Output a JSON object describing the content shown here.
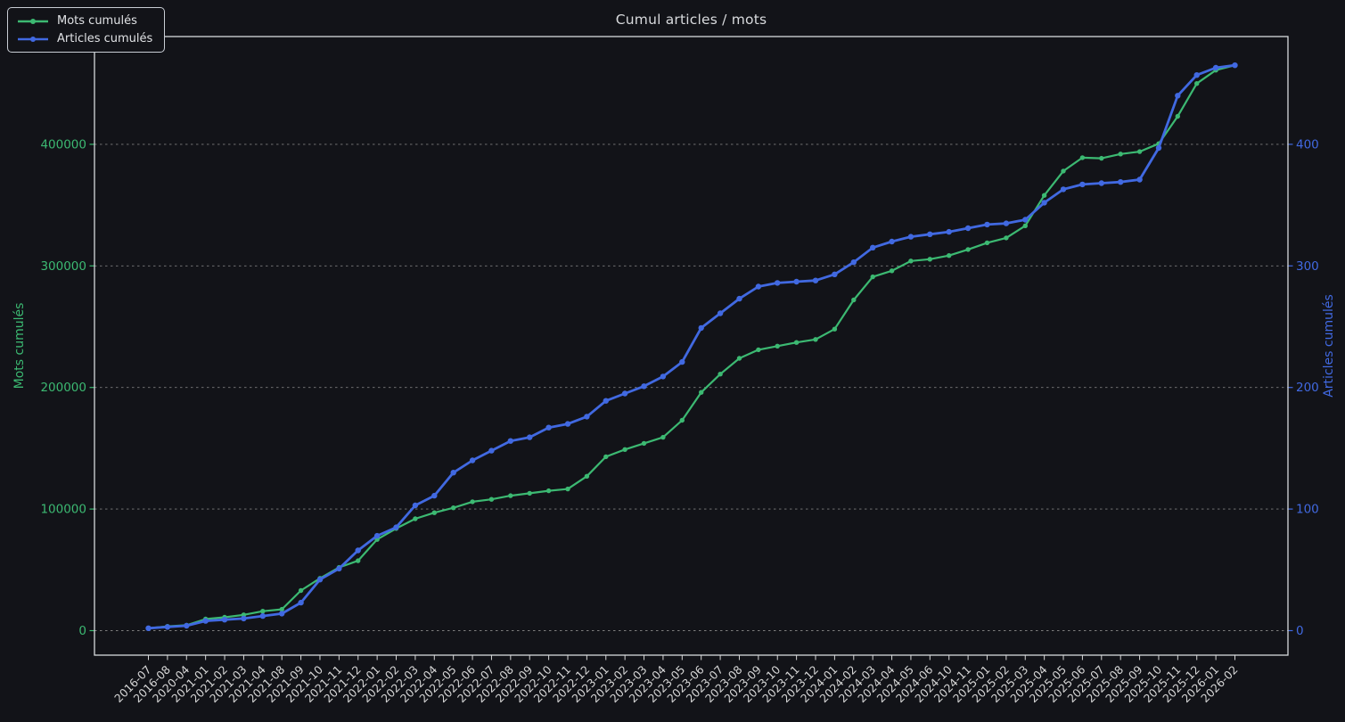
{
  "title": "Cumul articles / mots",
  "legend": {
    "items": [
      {
        "label": "Mots cumulés",
        "color": "#3cb972"
      },
      {
        "label": "Articles cumulés",
        "color": "#4169e1"
      }
    ]
  },
  "axes": {
    "left": {
      "label": "Mots cumulés",
      "color": "#3cb972",
      "ticks": [
        0,
        100000,
        200000,
        300000,
        400000
      ]
    },
    "right": {
      "label": "Articles cumulés",
      "color": "#4169e1",
      "ticks": [
        0,
        100,
        200,
        300,
        400
      ]
    }
  },
  "colors": {
    "background": "#121318",
    "spine": "#d6d9dc",
    "grid": "#a9a9a9",
    "x_tick_text": "#d6d6d6",
    "title_text": "#d8dadd"
  },
  "chart_data": {
    "type": "line",
    "title": "Cumul articles / mots",
    "grid": true,
    "legend_position": "upper left",
    "left_ylim": [
      -20000,
      490000
    ],
    "right_ylim": [
      -20,
      490
    ],
    "categories": [
      "2016-07",
      "2016-08",
      "2020-04",
      "2021-01",
      "2021-02",
      "2021-03",
      "2021-04",
      "2021-08",
      "2021-09",
      "2021-10",
      "2021-11",
      "2021-12",
      "2022-01",
      "2022-02",
      "2022-03",
      "2022-04",
      "2022-05",
      "2022-06",
      "2022-07",
      "2022-08",
      "2022-09",
      "2022-10",
      "2022-11",
      "2022-12",
      "2023-01",
      "2023-02",
      "2023-03",
      "2023-04",
      "2023-05",
      "2023-06",
      "2023-07",
      "2023-08",
      "2023-09",
      "2023-10",
      "2023-11",
      "2023-12",
      "2024-01",
      "2024-02",
      "2024-03",
      "2024-04",
      "2024-05",
      "2024-06",
      "2024-10",
      "2024-11",
      "2025-01",
      "2025-02",
      "2025-03",
      "2025-04",
      "2025-05",
      "2025-06",
      "2025-07",
      "2025-08",
      "2025-09",
      "2025-10",
      "2025-11",
      "2025-12",
      "2026-01",
      "2026-02"
    ],
    "series": [
      {
        "name": "Mots cumulés",
        "axis": "left",
        "color": "#3cb972",
        "line_width": 2.2,
        "marker_radius": 2.7,
        "values": [
          2000,
          3500,
          4500,
          9500,
          11000,
          13000,
          16000,
          17500,
          33000,
          43000,
          52000,
          57500,
          75000,
          84000,
          92000,
          97000,
          101000,
          106000,
          108000,
          111000,
          113000,
          115000,
          116500,
          127000,
          143000,
          149000,
          154000,
          159000,
          173000,
          196000,
          211000,
          224000,
          231000,
          234000,
          237000,
          239500,
          248000,
          272000,
          291000,
          296000,
          304000,
          305500,
          308500,
          313500,
          319000,
          323000,
          333000,
          358000,
          378000,
          389000,
          388500,
          392000,
          394000,
          400500,
          423000,
          450000,
          461000,
          465000
        ]
      },
      {
        "name": "Articles cumulés",
        "axis": "right",
        "color": "#4169e1",
        "line_width": 2.8,
        "marker_radius": 3.2,
        "values": [
          2,
          3,
          4,
          8,
          9,
          10,
          12,
          14,
          23,
          42,
          51,
          66,
          78,
          85,
          103,
          111,
          130,
          140,
          148,
          156,
          159,
          167,
          170,
          176,
          189,
          195,
          201,
          209,
          221,
          249,
          261,
          273,
          283,
          286,
          287,
          288,
          293,
          303,
          315,
          320,
          324,
          326,
          328,
          331,
          334,
          335,
          338,
          352,
          363,
          367,
          368,
          369,
          371,
          397,
          440,
          457,
          463,
          465
        ]
      }
    ]
  }
}
